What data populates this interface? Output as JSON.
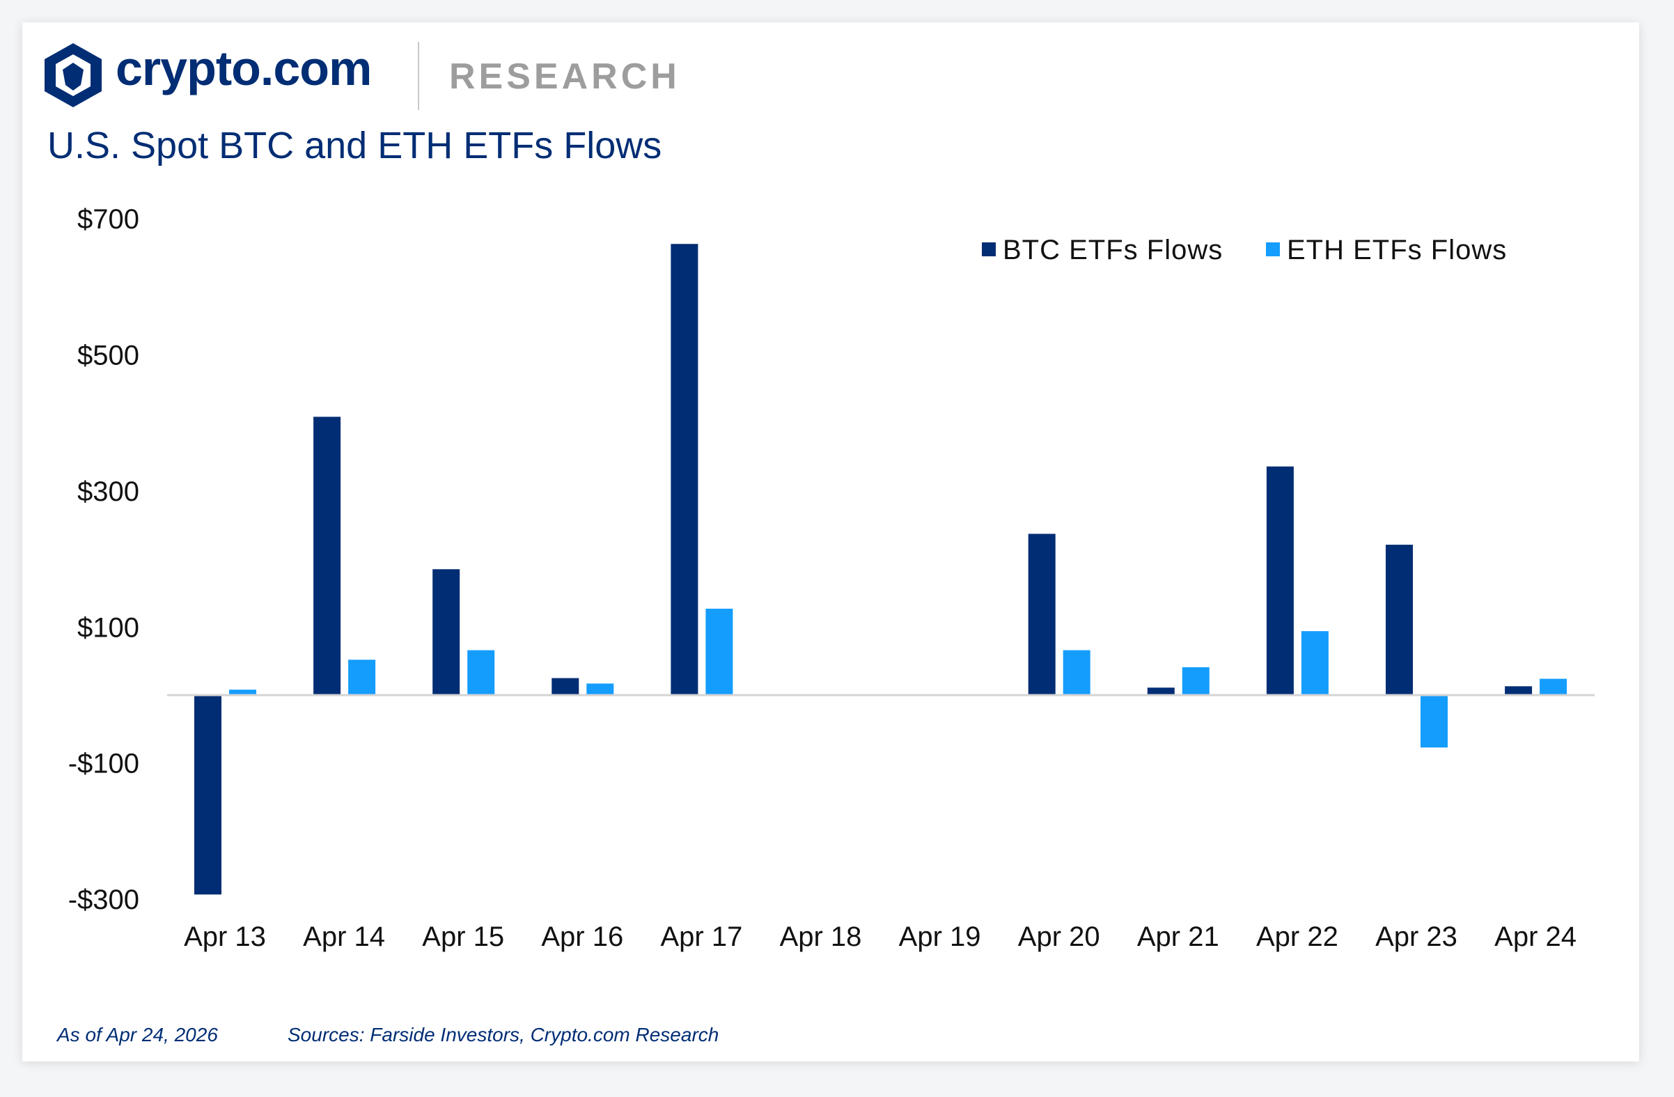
{
  "header": {
    "brand": "crypto.com",
    "section": "RESEARCH",
    "logo_icon": "crypto-com-lion-shield-icon"
  },
  "footer": {
    "as_of": "As of Apr 24, 2026",
    "sources": "Sources: Farside Investors, Crypto.com Research"
  },
  "chart_data": {
    "type": "bar",
    "title": "U.S. Spot BTC and ETH ETFs Flows",
    "xlabel": "",
    "ylabel": "",
    "categories": [
      "Apr 13",
      "Apr 14",
      "Apr 15",
      "Apr 16",
      "Apr 17",
      "Apr 18",
      "Apr 19",
      "Apr 20",
      "Apr 21",
      "Apr 22",
      "Apr 23",
      "Apr 24"
    ],
    "series": [
      {
        "name": "BTC ETFs Flows",
        "color": "#002d74",
        "values": [
          -293,
          409,
          185,
          25,
          663,
          0,
          0,
          237,
          11,
          336,
          221,
          13
        ]
      },
      {
        "name": "ETH ETFs Flows",
        "color": "#159dfe",
        "values": [
          8,
          52,
          66,
          17,
          127,
          0,
          0,
          66,
          41,
          94,
          -77,
          24
        ]
      }
    ],
    "ylim": [
      -300,
      700
    ],
    "yticks": [
      700,
      500,
      300,
      100,
      -100,
      -300
    ],
    "ytick_labels": [
      "$700",
      "$500",
      "$300",
      "$100",
      "-$100",
      "-$300"
    ],
    "grid": false,
    "legend": "top-right"
  }
}
